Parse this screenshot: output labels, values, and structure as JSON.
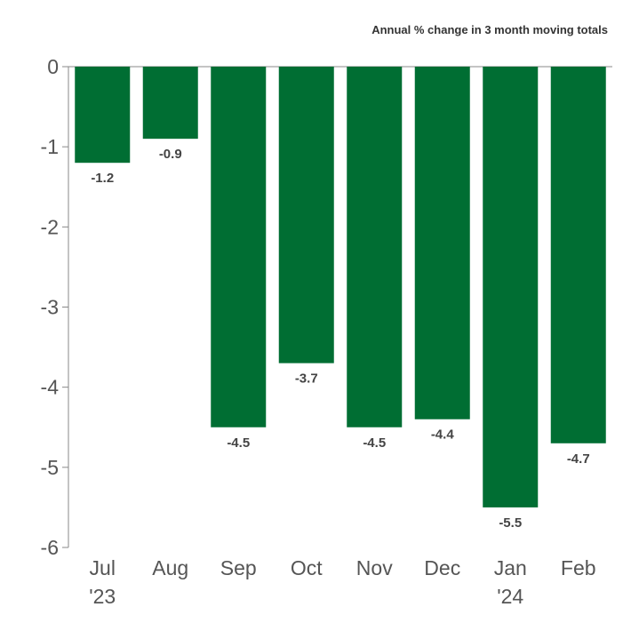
{
  "chart_data": {
    "type": "bar",
    "title": "",
    "subtitle": "Annual % change in 3 month moving totals",
    "xlabel": "",
    "ylabel": "",
    "categories": [
      {
        "month": "Jul",
        "year": "'23"
      },
      {
        "month": "Aug",
        "year": ""
      },
      {
        "month": "Sep",
        "year": ""
      },
      {
        "month": "Oct",
        "year": ""
      },
      {
        "month": "Nov",
        "year": ""
      },
      {
        "month": "Dec",
        "year": ""
      },
      {
        "month": "Jan",
        "year": "'24"
      },
      {
        "month": "Feb",
        "year": ""
      }
    ],
    "values": [
      -1.2,
      -0.9,
      -4.5,
      -3.7,
      -4.5,
      -4.4,
      -5.5,
      -4.7
    ],
    "data_labels": [
      "-1.2",
      "-0.9",
      "-4.5",
      "-3.7",
      "-4.5",
      "-4.4",
      "-5.5",
      "-4.7"
    ],
    "ylim": [
      -6,
      0
    ],
    "yticks": [
      0,
      -1,
      -2,
      -3,
      -4,
      -5,
      -6
    ],
    "grid": false,
    "colors": {
      "bar": "#006E33"
    }
  }
}
